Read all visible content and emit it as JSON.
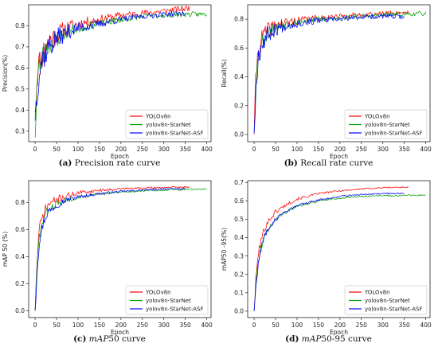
{
  "chart_data": [
    {
      "type": "line",
      "caption_tag": "(a)",
      "caption_italic": "",
      "caption_rest": "Precision rate curve",
      "xlabel": "Epoch",
      "ylabel": "Precision(%)",
      "xlim": [
        -15,
        410
      ],
      "ylim": [
        0.25,
        0.9
      ],
      "xticks": [
        0,
        50,
        100,
        150,
        200,
        250,
        300,
        350,
        400
      ],
      "yticks": [
        0.3,
        0.4,
        0.5,
        0.6,
        0.7,
        0.8
      ],
      "ytick_labels": [
        "0.3",
        "0.4",
        "0.5",
        "0.6",
        "0.7",
        "0.8"
      ],
      "legend_position": "lower-right",
      "series": [
        {
          "name": "YOLOv8n",
          "color": "#ff0000",
          "last": 360,
          "points": [
            [
              0,
              0.39
            ],
            [
              5,
              0.58
            ],
            [
              10,
              0.62
            ],
            [
              20,
              0.68
            ],
            [
              30,
              0.72
            ],
            [
              50,
              0.76
            ],
            [
              75,
              0.79
            ],
            [
              100,
              0.81
            ],
            [
              150,
              0.83
            ],
            [
              200,
              0.85
            ],
            [
              250,
              0.86
            ],
            [
              300,
              0.87
            ],
            [
              360,
              0.885
            ]
          ],
          "noise": [
            0.09,
            0.015
          ],
          "seed": 11
        },
        {
          "name": "yolov8n-StarNet",
          "color": "#00a000",
          "last": 400,
          "points": [
            [
              0,
              0.27
            ],
            [
              5,
              0.55
            ],
            [
              10,
              0.6
            ],
            [
              20,
              0.66
            ],
            [
              30,
              0.7
            ],
            [
              50,
              0.74
            ],
            [
              75,
              0.77
            ],
            [
              100,
              0.79
            ],
            [
              150,
              0.81
            ],
            [
              200,
              0.83
            ],
            [
              250,
              0.845
            ],
            [
              300,
              0.85
            ],
            [
              350,
              0.855
            ],
            [
              400,
              0.855
            ]
          ],
          "noise": [
            0.08,
            0.012
          ],
          "seed": 23
        },
        {
          "name": "yolov8n-StarNet-ASF",
          "color": "#0000ff",
          "last": 350,
          "points": [
            [
              0,
              0.35
            ],
            [
              5,
              0.52
            ],
            [
              10,
              0.6
            ],
            [
              20,
              0.66
            ],
            [
              30,
              0.7
            ],
            [
              50,
              0.74
            ],
            [
              75,
              0.77
            ],
            [
              100,
              0.79
            ],
            [
              150,
              0.81
            ],
            [
              200,
              0.83
            ],
            [
              250,
              0.845
            ],
            [
              300,
              0.855
            ],
            [
              350,
              0.86
            ]
          ],
          "noise": [
            0.1,
            0.012
          ],
          "seed": 37
        }
      ]
    },
    {
      "type": "line",
      "caption_tag": "(b)",
      "caption_italic": "",
      "caption_rest": "Recall rate curve",
      "xlabel": "Epoch",
      "ylabel": "Recall(%)",
      "xlim": [
        -15,
        410
      ],
      "ylim": [
        -0.05,
        0.9
      ],
      "xticks": [
        0,
        50,
        100,
        150,
        200,
        250,
        300,
        350,
        400
      ],
      "yticks": [
        0.0,
        0.2,
        0.4,
        0.6,
        0.8
      ],
      "ytick_labels": [
        "0.0",
        "0.2",
        "0.4",
        "0.6",
        "0.8"
      ],
      "legend_position": "lower-right",
      "series": [
        {
          "name": "YOLOv8n",
          "color": "#ff0000",
          "last": 360,
          "points": [
            [
              0,
              0.0
            ],
            [
              5,
              0.45
            ],
            [
              10,
              0.6
            ],
            [
              20,
              0.68
            ],
            [
              30,
              0.72
            ],
            [
              50,
              0.76
            ],
            [
              75,
              0.78
            ],
            [
              100,
              0.79
            ],
            [
              150,
              0.81
            ],
            [
              200,
              0.82
            ],
            [
              250,
              0.83
            ],
            [
              300,
              0.84
            ],
            [
              360,
              0.85
            ]
          ],
          "noise": [
            0.08,
            0.015
          ],
          "seed": 41
        },
        {
          "name": "yolov8n-StarNet",
          "color": "#00a000",
          "last": 400,
          "points": [
            [
              0,
              0.02
            ],
            [
              5,
              0.4
            ],
            [
              10,
              0.55
            ],
            [
              20,
              0.65
            ],
            [
              30,
              0.7
            ],
            [
              50,
              0.74
            ],
            [
              75,
              0.77
            ],
            [
              100,
              0.78
            ],
            [
              150,
              0.8
            ],
            [
              200,
              0.81
            ],
            [
              250,
              0.82
            ],
            [
              300,
              0.83
            ],
            [
              350,
              0.835
            ],
            [
              400,
              0.84
            ]
          ],
          "noise": [
            0.08,
            0.015
          ],
          "seed": 53
        },
        {
          "name": "yolov8n-StarNet-ASF",
          "color": "#0000ff",
          "last": 350,
          "points": [
            [
              0,
              0.01
            ],
            [
              5,
              0.38
            ],
            [
              10,
              0.55
            ],
            [
              20,
              0.64
            ],
            [
              30,
              0.69
            ],
            [
              50,
              0.73
            ],
            [
              75,
              0.76
            ],
            [
              100,
              0.77
            ],
            [
              150,
              0.79
            ],
            [
              200,
              0.8
            ],
            [
              250,
              0.815
            ],
            [
              300,
              0.82
            ],
            [
              350,
              0.815
            ]
          ],
          "noise": [
            0.09,
            0.015
          ],
          "seed": 67
        }
      ]
    },
    {
      "type": "line",
      "caption_tag": "(c)",
      "caption_italic": "mAP",
      "caption_rest": "50 curve",
      "xlabel": "Epoch",
      "ylabel": "mAP 50 (%)",
      "xlim": [
        -15,
        410
      ],
      "ylim": [
        -0.05,
        0.96
      ],
      "xticks": [
        0,
        50,
        100,
        150,
        200,
        250,
        300,
        350,
        400
      ],
      "yticks": [
        0.0,
        0.2,
        0.4,
        0.6,
        0.8
      ],
      "ytick_labels": [
        "0.0",
        "0.2",
        "0.4",
        "0.6",
        "0.8"
      ],
      "legend_position": "lower-right",
      "series": [
        {
          "name": "YOLOv8n",
          "color": "#ff0000",
          "last": 360,
          "points": [
            [
              0,
              0.0
            ],
            [
              5,
              0.4
            ],
            [
              10,
              0.6
            ],
            [
              20,
              0.72
            ],
            [
              30,
              0.78
            ],
            [
              50,
              0.82
            ],
            [
              75,
              0.85
            ],
            [
              100,
              0.87
            ],
            [
              150,
              0.89
            ],
            [
              200,
              0.9
            ],
            [
              250,
              0.905
            ],
            [
              300,
              0.91
            ],
            [
              360,
              0.912
            ]
          ],
          "noise": [
            0.06,
            0.006
          ],
          "seed": 71
        },
        {
          "name": "yolov8n-StarNet",
          "color": "#00a000",
          "last": 400,
          "points": [
            [
              0,
              0.0
            ],
            [
              5,
              0.35
            ],
            [
              10,
              0.55
            ],
            [
              20,
              0.68
            ],
            [
              30,
              0.74
            ],
            [
              50,
              0.79
            ],
            [
              75,
              0.82
            ],
            [
              100,
              0.84
            ],
            [
              150,
              0.86
            ],
            [
              200,
              0.875
            ],
            [
              250,
              0.885
            ],
            [
              300,
              0.89
            ],
            [
              350,
              0.895
            ],
            [
              400,
              0.9
            ]
          ],
          "noise": [
            0.05,
            0.006
          ],
          "seed": 83
        },
        {
          "name": "yolov8n-StarNet-ASF",
          "color": "#0000ff",
          "last": 350,
          "points": [
            [
              0,
              0.0
            ],
            [
              5,
              0.33
            ],
            [
              10,
              0.52
            ],
            [
              20,
              0.66
            ],
            [
              30,
              0.73
            ],
            [
              50,
              0.78
            ],
            [
              75,
              0.82
            ],
            [
              100,
              0.84
            ],
            [
              150,
              0.865
            ],
            [
              200,
              0.88
            ],
            [
              250,
              0.89
            ],
            [
              300,
              0.9
            ],
            [
              350,
              0.9
            ]
          ],
          "noise": [
            0.05,
            0.006
          ],
          "seed": 97
        }
      ]
    },
    {
      "type": "line",
      "caption_tag": "(d)",
      "caption_italic": "mAP",
      "caption_rest": "50-95 curve",
      "xlabel": "Epoch",
      "ylabel": "mAP50 -95(%)",
      "xlim": [
        -15,
        410
      ],
      "ylim": [
        -0.035,
        0.71
      ],
      "xticks": [
        0,
        50,
        100,
        150,
        200,
        250,
        300,
        350,
        400
      ],
      "yticks": [
        0.0,
        0.1,
        0.2,
        0.3,
        0.4,
        0.5,
        0.6,
        0.7
      ],
      "ytick_labels": [
        "0.0",
        "0.1",
        "0.2",
        "0.3",
        "0.4",
        "0.5",
        "0.6",
        "0.7"
      ],
      "legend_position": "lower-right",
      "series": [
        {
          "name": "YOLOv8n",
          "color": "#ff0000",
          "last": 360,
          "points": [
            [
              0,
              0.0
            ],
            [
              5,
              0.2
            ],
            [
              10,
              0.32
            ],
            [
              20,
              0.42
            ],
            [
              30,
              0.48
            ],
            [
              50,
              0.54
            ],
            [
              75,
              0.58
            ],
            [
              100,
              0.61
            ],
            [
              150,
              0.64
            ],
            [
              200,
              0.655
            ],
            [
              250,
              0.665
            ],
            [
              300,
              0.672
            ],
            [
              360,
              0.675
            ]
          ],
          "noise": [
            0.025,
            0.004
          ],
          "seed": 101
        },
        {
          "name": "yolov8n-StarNet",
          "color": "#00a000",
          "last": 400,
          "points": [
            [
              0,
              0.0
            ],
            [
              5,
              0.17
            ],
            [
              10,
              0.28
            ],
            [
              20,
              0.38
            ],
            [
              30,
              0.44
            ],
            [
              50,
              0.5
            ],
            [
              75,
              0.54
            ],
            [
              100,
              0.57
            ],
            [
              150,
              0.6
            ],
            [
              200,
              0.615
            ],
            [
              250,
              0.625
            ],
            [
              300,
              0.628
            ],
            [
              350,
              0.63
            ],
            [
              400,
              0.63
            ]
          ],
          "noise": [
            0.02,
            0.004
          ],
          "seed": 113
        },
        {
          "name": "yolov8n-StarNet-ASF",
          "color": "#0000ff",
          "last": 350,
          "points": [
            [
              0,
              0.0
            ],
            [
              5,
              0.15
            ],
            [
              10,
              0.27
            ],
            [
              20,
              0.38
            ],
            [
              30,
              0.44
            ],
            [
              50,
              0.5
            ],
            [
              75,
              0.545
            ],
            [
              100,
              0.575
            ],
            [
              150,
              0.605
            ],
            [
              200,
              0.625
            ],
            [
              250,
              0.635
            ],
            [
              300,
              0.64
            ],
            [
              350,
              0.64
            ]
          ],
          "noise": [
            0.02,
            0.004
          ],
          "seed": 127
        }
      ]
    }
  ]
}
